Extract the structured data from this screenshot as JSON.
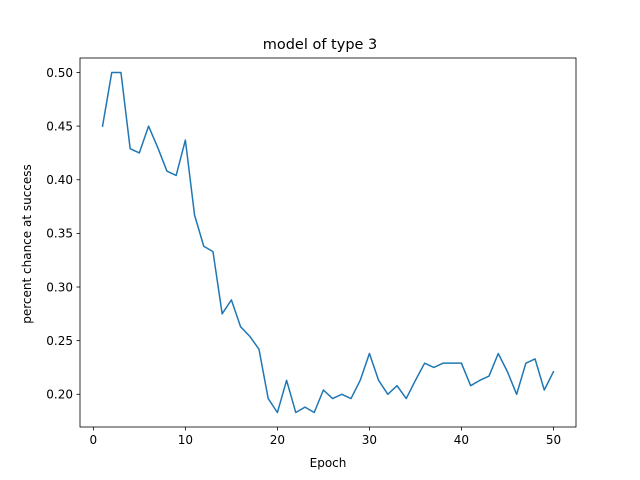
{
  "chart_data": {
    "type": "line",
    "title": "model of type 3",
    "xlabel": "Epoch",
    "ylabel": "percent chance at success",
    "xlim": [
      -1.45,
      52.45
    ],
    "ylim": [
      0.1695,
      0.5135
    ],
    "xticks": [
      0,
      10,
      20,
      30,
      40,
      50
    ],
    "yticks": [
      0.2,
      0.25,
      0.3,
      0.35,
      0.4,
      0.45,
      0.5
    ],
    "xtick_labels": [
      "0",
      "10",
      "20",
      "30",
      "40",
      "50"
    ],
    "ytick_labels": [
      "0.20",
      "0.25",
      "0.30",
      "0.35",
      "0.40",
      "0.45",
      "0.50"
    ],
    "grid": false,
    "legend": "none",
    "series": [
      {
        "color": "#1f77b4",
        "x": [
          1,
          2,
          3,
          4,
          5,
          6,
          7,
          8,
          9,
          10,
          11,
          12,
          13,
          14,
          15,
          16,
          17,
          18,
          19,
          20,
          21,
          22,
          23,
          24,
          25,
          26,
          27,
          28,
          29,
          30,
          31,
          32,
          33,
          34,
          35,
          36,
          37,
          38,
          39,
          40,
          41,
          42,
          43,
          44,
          45,
          46,
          47,
          48,
          49,
          50
        ],
        "y": [
          0.45,
          0.5,
          0.5,
          0.429,
          0.425,
          0.45,
          0.43,
          0.408,
          0.404,
          0.437,
          0.367,
          0.338,
          0.333,
          0.275,
          0.288,
          0.263,
          0.254,
          0.242,
          0.196,
          0.183,
          0.213,
          0.183,
          0.188,
          0.183,
          0.204,
          0.196,
          0.2,
          0.196,
          0.213,
          0.238,
          0.213,
          0.2,
          0.208,
          0.196,
          0.213,
          0.229,
          0.225,
          0.229,
          0.229,
          0.229,
          0.208,
          0.213,
          0.217,
          0.238,
          0.221,
          0.2,
          0.229,
          0.233,
          0.204,
          0.221
        ]
      }
    ]
  }
}
